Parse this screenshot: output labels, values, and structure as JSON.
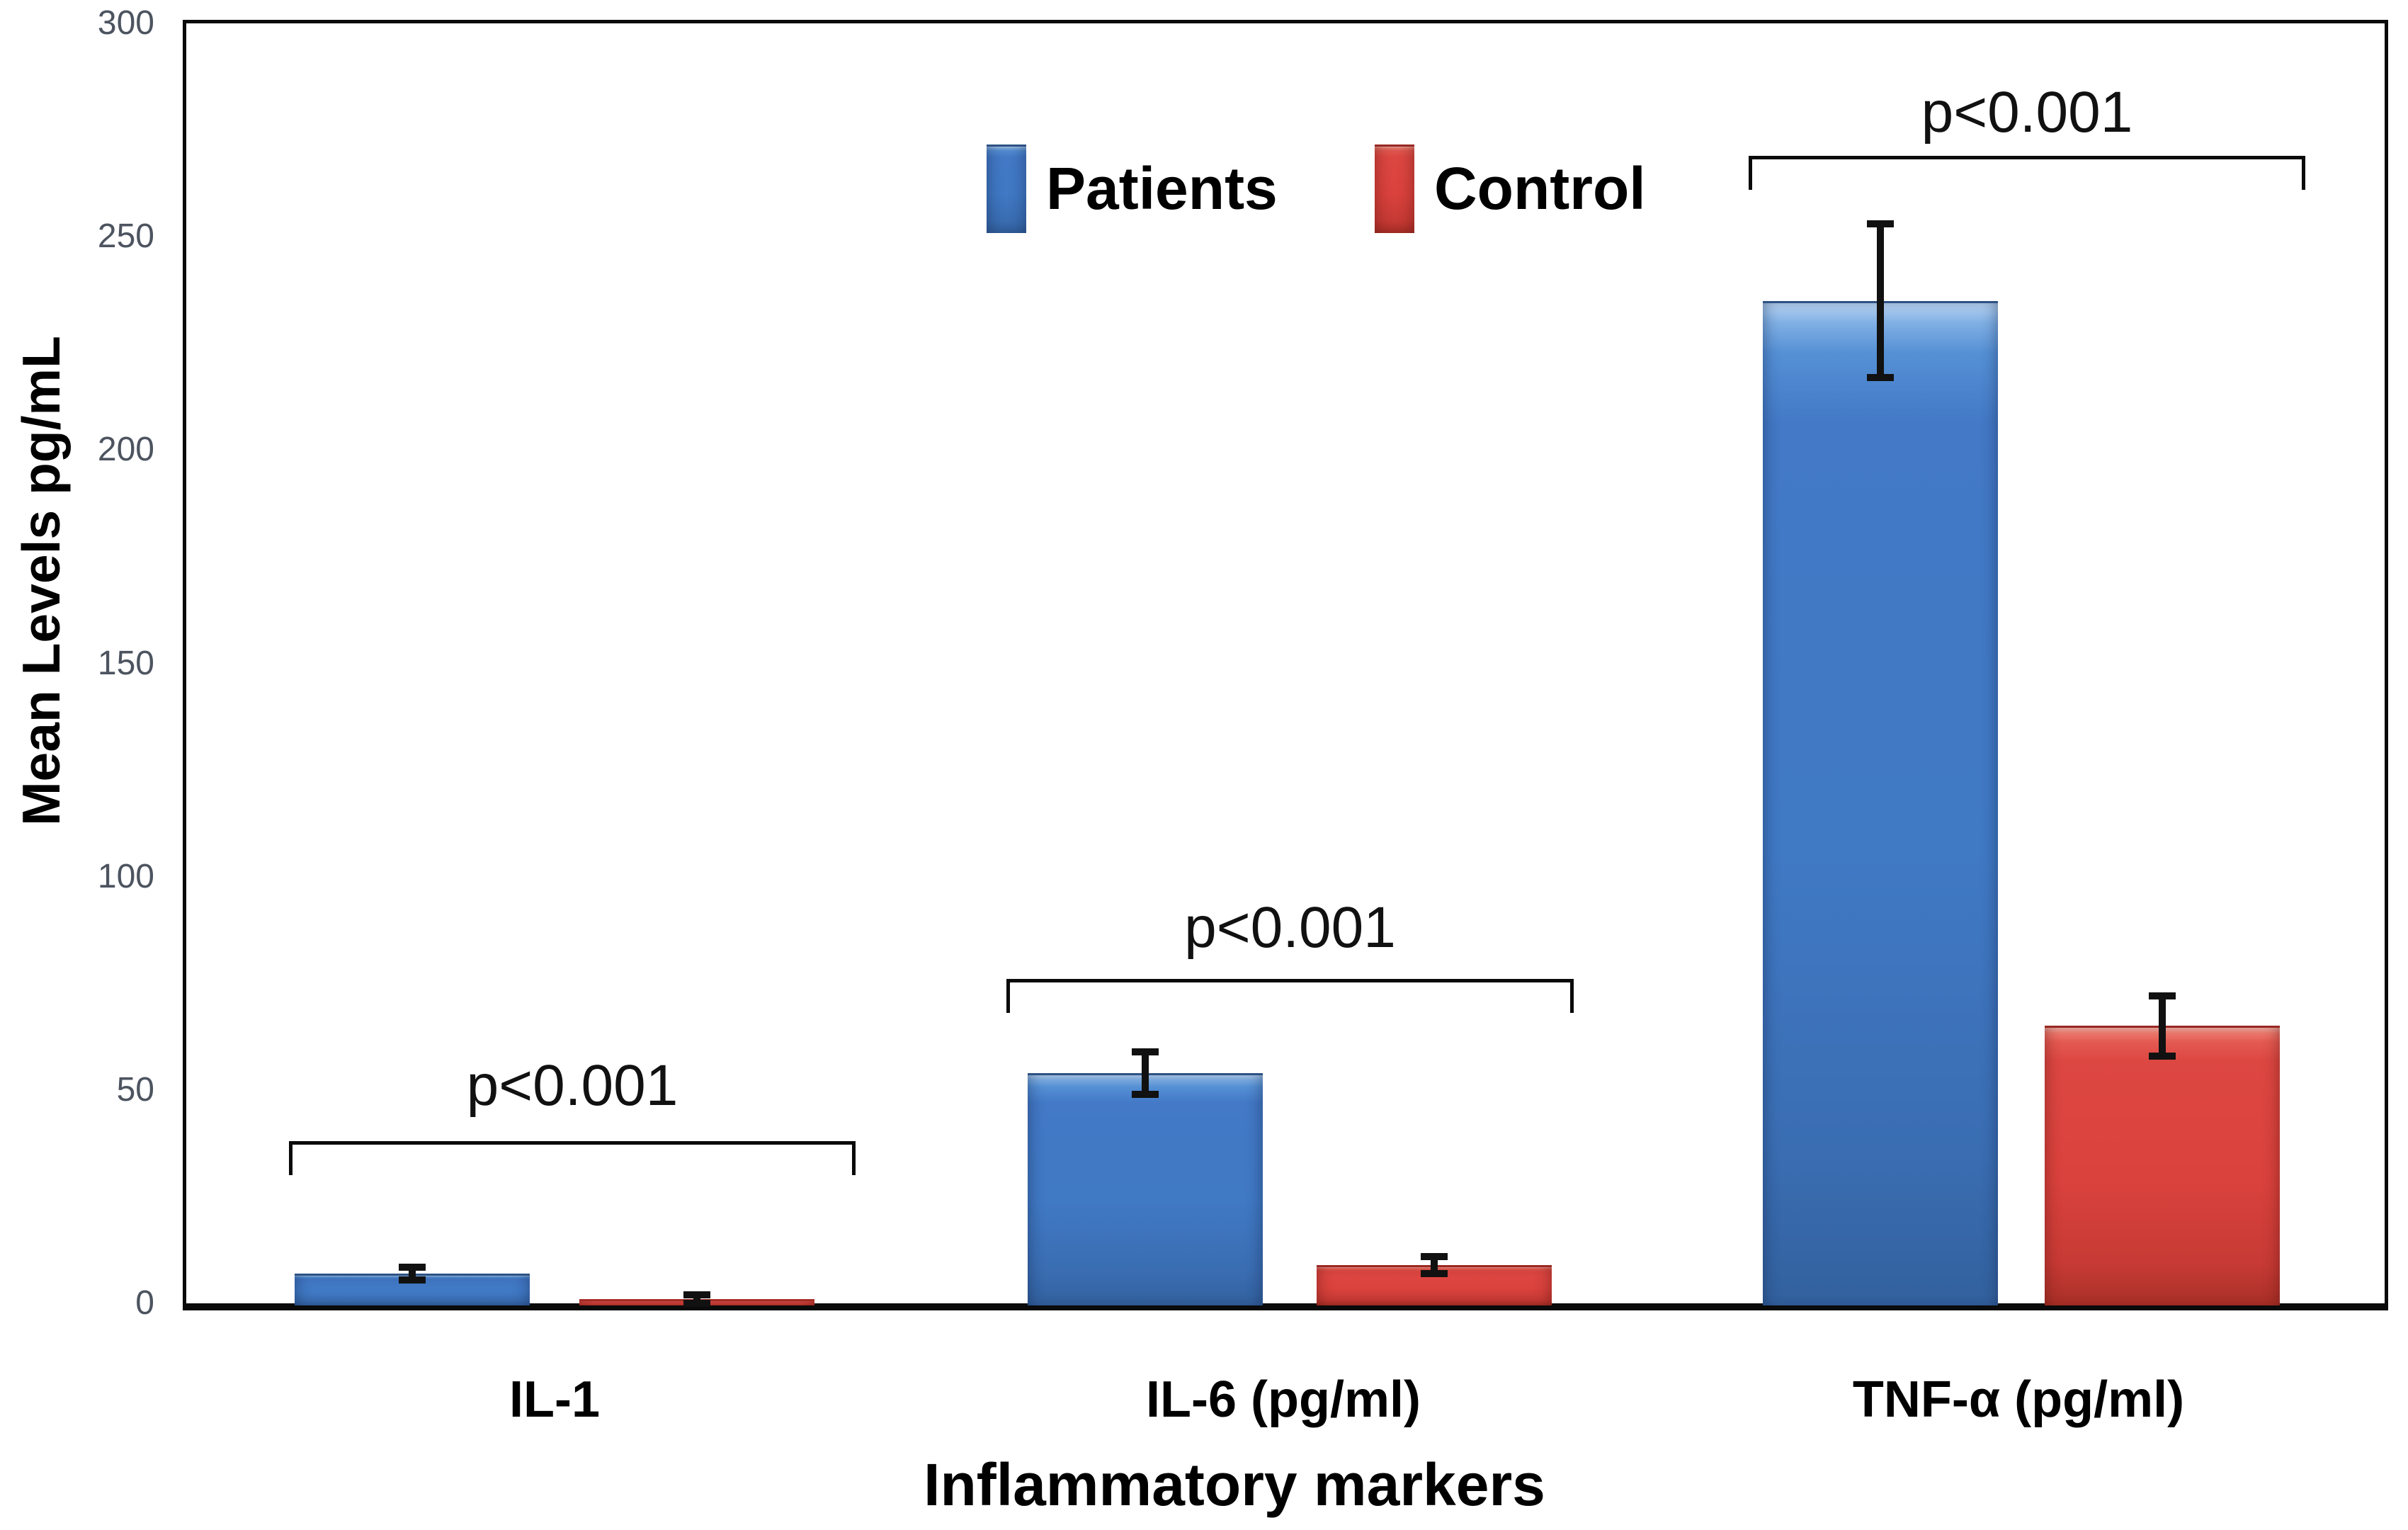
{
  "chart_data": {
    "type": "bar",
    "title": "",
    "categories": [
      "IL-1",
      "IL-6 (pg/ml)",
      "TNF-α (pg/ml)"
    ],
    "series": [
      {
        "name": "Patients",
        "color": "#4079c4",
        "values": [
          7,
          54,
          235
        ],
        "errors": [
          1.5,
          5,
          18
        ]
      },
      {
        "name": "Control",
        "color": "#dd4440",
        "values": [
          1,
          9,
          65
        ],
        "errors": [
          1,
          2,
          7
        ]
      }
    ],
    "ylabel": "Mean Levels pg/mL",
    "xlabel": "Inflammatory markers",
    "ylim": [
      0,
      300
    ],
    "yticks": [
      0,
      50,
      100,
      150,
      200,
      250,
      300
    ],
    "grid": false,
    "legend_position": "top-center",
    "annotations": [
      {
        "text": "p<0.001",
        "category": "IL-1"
      },
      {
        "text": "p<0.001",
        "category": "IL-6 (pg/ml)"
      },
      {
        "text": "p<0.001",
        "category": "TNF-α (pg/ml)"
      }
    ]
  }
}
